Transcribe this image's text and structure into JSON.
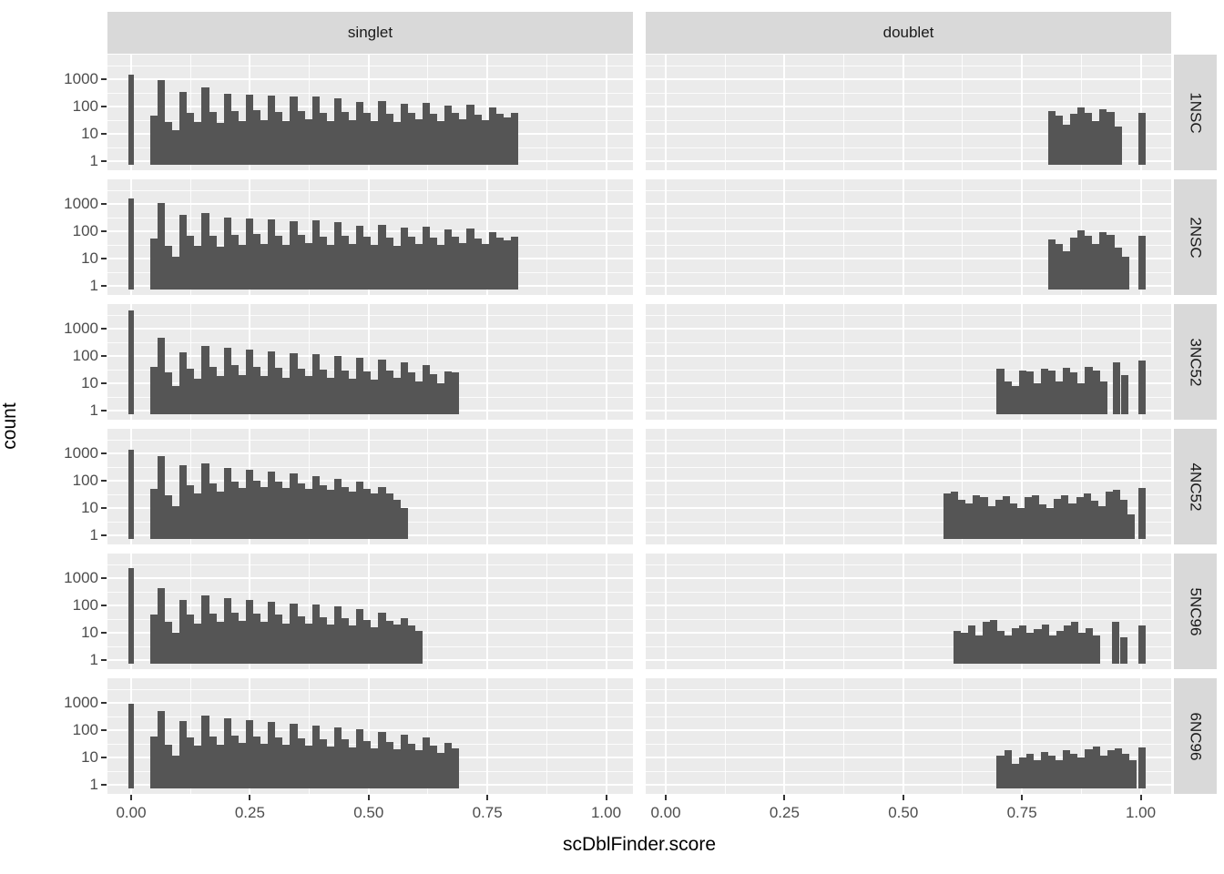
{
  "strips": {
    "columns": [
      "singlet",
      "doublet"
    ],
    "rows": [
      "1NSC",
      "2NSC",
      "3NC52",
      "4NC52",
      "5NC96",
      "6NC96"
    ]
  },
  "axes": {
    "x_label": "scDblFinder.score",
    "y_label": "count",
    "x_ticks": [
      "0.00",
      "0.25",
      "0.50",
      "0.75",
      "1.00"
    ],
    "x_tick_values": [
      0,
      0.25,
      0.5,
      0.75,
      1
    ],
    "y_ticks": [
      "1000",
      "100",
      "10",
      "1"
    ],
    "y_tick_values": [
      1000,
      100,
      10,
      1
    ]
  },
  "colors": {
    "panel_bg": "#EBEBEB",
    "strip_bg": "#D9D9D9",
    "bar": "#555555",
    "grid": "#FFFFFF",
    "tick_text": "#4D4D4D",
    "strip_text": "#1A1A1A",
    "title_text": "#000000",
    "tick_mark": "#333333"
  },
  "chart_data": {
    "type": "bar",
    "subtype": "faceted-histogram",
    "x_variable": "scDblFinder.score",
    "y_variable": "count",
    "y_scale": "log10",
    "x_domain": [
      -0.05,
      1.06
    ],
    "y_axis_ticks": [
      1,
      10,
      100,
      1000
    ],
    "grid": "on",
    "facet_columns": [
      "singlet",
      "doublet"
    ],
    "facet_rows": [
      "1NSC",
      "2NSC",
      "3NC52",
      "4NC52",
      "5NC96",
      "6NC96"
    ],
    "binwidth": 0.0155,
    "panels": [
      {
        "row": "1NSC",
        "col": "singlet",
        "zero_bar": 1500,
        "x0": 0.04,
        "counts": [
          45,
          900,
          28,
          14,
          330,
          60,
          28,
          500,
          65,
          25,
          300,
          70,
          30,
          280,
          75,
          32,
          260,
          65,
          30,
          230,
          70,
          35,
          240,
          60,
          30,
          200,
          65,
          32,
          150,
          60,
          30,
          160,
          55,
          28,
          130,
          60,
          33,
          140,
          55,
          30,
          110,
          60,
          35,
          120,
          50,
          32,
          90,
          55,
          40,
          60
        ],
        "extras": []
      },
      {
        "row": "1NSC",
        "col": "doublet",
        "zero_bar": null,
        "x0": 0.805,
        "counts": [
          70,
          45,
          22,
          55,
          95,
          60,
          30,
          80,
          65,
          18
        ],
        "extras": [
          [
            0.995,
            60
          ]
        ]
      },
      {
        "row": "2NSC",
        "col": "singlet",
        "zero_bar": 1600,
        "x0": 0.04,
        "counts": [
          55,
          1100,
          30,
          12,
          400,
          70,
          30,
          480,
          70,
          28,
          320,
          75,
          32,
          300,
          80,
          35,
          270,
          70,
          32,
          240,
          75,
          38,
          250,
          65,
          32,
          210,
          70,
          35,
          160,
          65,
          32,
          170,
          60,
          30,
          140,
          65,
          35,
          150,
          60,
          32,
          115,
          65,
          38,
          125,
          55,
          35,
          95,
          60,
          45,
          65
        ],
        "extras": []
      },
      {
        "row": "2NSC",
        "col": "doublet",
        "zero_bar": null,
        "x0": 0.805,
        "counts": [
          50,
          35,
          18,
          60,
          110,
          70,
          35,
          90,
          75,
          25,
          12
        ],
        "extras": [
          [
            0.995,
            70
          ]
        ]
      },
      {
        "row": "3NC52",
        "col": "singlet",
        "zero_bar": 4500,
        "x0": 0.04,
        "counts": [
          40,
          450,
          25,
          8,
          140,
          35,
          15,
          230,
          40,
          18,
          200,
          45,
          20,
          170,
          40,
          18,
          150,
          38,
          16,
          130,
          35,
          18,
          115,
          32,
          16,
          100,
          30,
          15,
          85,
          28,
          14,
          75,
          30,
          16,
          60,
          25,
          12,
          45,
          22,
          10,
          28,
          25
        ],
        "extras": []
      },
      {
        "row": "3NC52",
        "col": "doublet",
        "zero_bar": null,
        "x0": 0.697,
        "counts": [
          35,
          12,
          8,
          30,
          28,
          10,
          35,
          30,
          12,
          38,
          25,
          10,
          40,
          30,
          12
        ],
        "extras": [
          [
            0.942,
            60
          ],
          [
            0.958,
            20
          ],
          [
            0.995,
            70
          ]
        ]
      },
      {
        "row": "4NC52",
        "col": "singlet",
        "zero_bar": 1400,
        "x0": 0.04,
        "counts": [
          50,
          800,
          30,
          12,
          380,
          70,
          35,
          420,
          80,
          40,
          300,
          90,
          55,
          260,
          100,
          60,
          220,
          90,
          55,
          180,
          80,
          50,
          150,
          70,
          45,
          120,
          60,
          40,
          90,
          50,
          35,
          60,
          35,
          20,
          10
        ],
        "extras": []
      },
      {
        "row": "4NC52",
        "col": "doublet",
        "zero_bar": null,
        "x0": 0.585,
        "counts": [
          35,
          40,
          20,
          15,
          30,
          25,
          12,
          20,
          28,
          15,
          10,
          25,
          30,
          14,
          10,
          22,
          30,
          15,
          25,
          35,
          18,
          12,
          40,
          45,
          20,
          6
        ],
        "extras": [
          [
            0.995,
            55
          ]
        ]
      },
      {
        "row": "5NC96",
        "col": "singlet",
        "zero_bar": 2300,
        "x0": 0.04,
        "counts": [
          45,
          420,
          25,
          10,
          160,
          45,
          22,
          230,
          50,
          25,
          190,
          55,
          28,
          160,
          50,
          25,
          140,
          45,
          22,
          120,
          40,
          22,
          105,
          38,
          20,
          90,
          35,
          18,
          75,
          30,
          16,
          55,
          28,
          20,
          35,
          18,
          12
        ],
        "extras": []
      },
      {
        "row": "5NC96",
        "col": "doublet",
        "zero_bar": null,
        "x0": 0.605,
        "counts": [
          12,
          10,
          18,
          8,
          25,
          30,
          12,
          8,
          15,
          18,
          10,
          14,
          20,
          8,
          12,
          18,
          25,
          10,
          15,
          8
        ],
        "extras": [
          [
            0.94,
            25
          ],
          [
            0.956,
            7
          ],
          [
            0.995,
            18
          ]
        ]
      },
      {
        "row": "6NC96",
        "col": "singlet",
        "zero_bar": 900,
        "x0": 0.04,
        "counts": [
          60,
          500,
          30,
          12,
          220,
          55,
          28,
          330,
          60,
          30,
          280,
          65,
          35,
          240,
          60,
          32,
          200,
          55,
          30,
          170,
          50,
          28,
          145,
          48,
          26,
          125,
          45,
          24,
          105,
          40,
          22,
          85,
          38,
          20,
          70,
          32,
          18,
          55,
          28,
          15,
          35,
          22
        ],
        "extras": []
      },
      {
        "row": "6NC96",
        "col": "doublet",
        "zero_bar": null,
        "x0": 0.697,
        "counts": [
          12,
          18,
          6,
          10,
          14,
          8,
          16,
          12,
          8,
          18,
          14,
          10,
          20,
          25,
          12,
          18,
          22,
          14,
          8
        ],
        "extras": [
          [
            0.995,
            23
          ]
        ]
      }
    ]
  }
}
